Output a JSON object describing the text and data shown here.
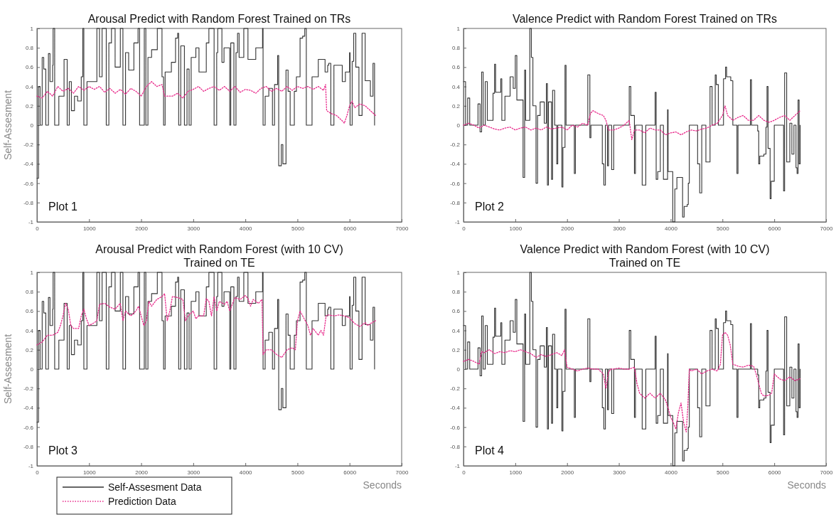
{
  "chart_data": [
    {
      "type": "line",
      "title": "Arousal Predict with Random Forest Trained on TRs",
      "ylabel": "Self-Assesment",
      "xlim": [
        0,
        7000
      ],
      "xticks": [
        0,
        1000,
        2000,
        3000,
        4000,
        5000,
        6000,
        7000
      ],
      "ylim": [
        -1,
        1
      ],
      "yticks": [
        -1,
        -0.8,
        -0.6,
        -0.4,
        -0.2,
        0,
        0.2,
        0.4,
        0.6,
        0.8,
        1
      ],
      "annotations": [
        "Plot 1"
      ],
      "series": [
        {
          "type": "step",
          "color": "#333333",
          "line_style": "solid",
          "x": [
            0,
            30,
            60,
            100,
            130,
            170,
            220,
            250,
            300,
            310,
            340,
            420,
            520,
            580,
            620,
            660,
            720,
            780,
            850,
            880,
            900,
            960,
            1150,
            1200,
            1250,
            1330,
            1380,
            1430,
            1500,
            1600,
            1650,
            1700,
            1760,
            1860,
            1940,
            1970,
            2060,
            2090,
            2130,
            2200,
            2310,
            2400,
            2430,
            2460,
            2580,
            2660,
            2700,
            2720,
            2760,
            2830,
            2880,
            2920,
            2960,
            3050,
            3110,
            3250,
            3300,
            3400,
            3450,
            3470,
            3550,
            3590,
            3700,
            3720,
            3780,
            3820,
            3850,
            3880,
            3970,
            4050,
            4200,
            4330,
            4340,
            4380,
            4450,
            4520,
            4560,
            4620,
            4640,
            4690,
            4720,
            4780,
            4820,
            4860,
            4940,
            4980,
            5050,
            5100,
            5140,
            5170,
            5280,
            5400,
            5530,
            5580,
            5600,
            5640,
            5700,
            5860,
            5920,
            6000,
            6010,
            6050,
            6080,
            6120,
            6180,
            6240,
            6300,
            6400,
            6450,
            6480
          ],
          "values": [
            -0.55,
            0.4,
            0,
            0.7,
            0.58,
            0,
            0.74,
            0.45,
            0.62,
            1,
            0,
            0.3,
            0.68,
            0,
            0.45,
            0.15,
            0.3,
            0.25,
            0.5,
            1,
            0,
            0.45,
            1,
            0.5,
            1,
            0,
            0.85,
            1,
            0.6,
            1,
            0,
            0.75,
            0.57,
            0.85,
            1,
            0,
            1,
            0,
            0.7,
            0.78,
            1,
            0.5,
            0,
            0.55,
            0.65,
            0.9,
            0.95,
            0,
            0.82,
            0,
            0.58,
            0,
            0.7,
            0.8,
            0.55,
            0.85,
            1,
            0,
            0.75,
            1,
            0.65,
            0.8,
            0,
            0.85,
            0,
            0.75,
            0.95,
            0.7,
            1,
            0.68,
            0.8,
            1,
            0,
            0.3,
            0.38,
            0,
            0.42,
            0.72,
            -0.42,
            -0.2,
            -0.4,
            0.57,
            0.35,
            0,
            0.35,
            0.5,
            0.9,
            0.92,
            1,
            0,
            0.5,
            0.68,
            0.55,
            0.62,
            0.64,
            0,
            0.62,
            0.45,
            0.55,
            0.75,
            0,
            0.66,
            0.95,
            0.6,
            0.1,
            0.95,
            0.46,
            0.3,
            0.64,
            0
          ]
        },
        {
          "color": "#e8288a",
          "line_style": "dotted",
          "x": [
            0,
            100,
            200,
            300,
            400,
            500,
            600,
            700,
            800,
            900,
            1000,
            1100,
            1200,
            1300,
            1400,
            1500,
            1600,
            1700,
            1800,
            1900,
            2000,
            2100,
            2200,
            2300,
            2400,
            2450,
            2600,
            2700,
            2800,
            2900,
            3000,
            3100,
            3200,
            3300,
            3400,
            3500,
            3600,
            3700,
            3800,
            3900,
            4000,
            4100,
            4200,
            4300,
            4400,
            4500,
            4600,
            4700,
            4800,
            4900,
            5000,
            5100,
            5200,
            5300,
            5400,
            5500,
            5540,
            5560,
            5650,
            5750,
            5850,
            5900,
            5950,
            6000,
            6050,
            6100,
            6200,
            6300,
            6400,
            6500
          ],
          "values": [
            0.3,
            0.28,
            0.35,
            0.3,
            0.4,
            0.35,
            0.38,
            0.33,
            0.4,
            0.36,
            0.4,
            0.37,
            0.4,
            0.34,
            0.38,
            0.33,
            0.37,
            0.32,
            0.38,
            0.35,
            0.3,
            0.4,
            0.45,
            0.4,
            0.42,
            0.3,
            0.3,
            0.33,
            0.28,
            0.35,
            0.37,
            0.4,
            0.35,
            0.38,
            0.4,
            0.36,
            0.4,
            0.35,
            0.4,
            0.34,
            0.37,
            0.36,
            0.33,
            0.38,
            0.4,
            0.35,
            0.38,
            0.35,
            0.4,
            0.36,
            0.4,
            0.38,
            0.4,
            0.37,
            0.4,
            0.36,
            0.42,
            0.15,
            0.12,
            0.1,
            0.05,
            0.02,
            0.1,
            0.2,
            0.25,
            0.18,
            0.22,
            0.2,
            0.15,
            0.1
          ]
        }
      ]
    },
    {
      "type": "line",
      "title": "Valence Predict with Random Forest Trained on TRs",
      "xlim": [
        0,
        7000
      ],
      "xticks": [
        0,
        1000,
        2000,
        3000,
        4000,
        5000,
        6000,
        7000
      ],
      "ylim": [
        -1,
        1
      ],
      "yticks": [
        -1,
        -0.8,
        -0.6,
        -0.4,
        -0.2,
        0,
        0.2,
        0.4,
        0.6,
        0.8,
        1
      ],
      "annotations": [
        "Plot 2"
      ],
      "series": [
        {
          "type": "step",
          "color": "#333333",
          "line_style": "solid",
          "x": [
            0,
            40,
            80,
            120,
            280,
            320,
            350,
            380,
            420,
            460,
            570,
            600,
            620,
            720,
            740,
            800,
            900,
            960,
            1000,
            1030,
            1150,
            1180,
            1200,
            1280,
            1310,
            1340,
            1400,
            1430,
            1480,
            1560,
            1600,
            1620,
            1640,
            1700,
            1720,
            1760,
            1800,
            1820,
            1900,
            1920,
            1960,
            1980,
            2140,
            2160,
            2400,
            2440,
            2460,
            2680,
            2710,
            2740,
            2780,
            2800,
            2860,
            2900,
            3200,
            3230,
            3300,
            3320,
            3450,
            3520,
            3700,
            3720,
            3750,
            3800,
            3860,
            3940,
            3950,
            4040,
            4080,
            4120,
            4230,
            4260,
            4320,
            4340,
            4360,
            4520,
            4560,
            4600,
            4680,
            4760,
            4800,
            4860,
            4880,
            4920,
            5020,
            5060,
            5080,
            5160,
            5200,
            5280,
            5300,
            5540,
            5560,
            5680,
            5700,
            5720,
            5800,
            5840,
            5860,
            5880,
            5920,
            5940,
            6000,
            6180,
            6200,
            6240,
            6300,
            6340,
            6380,
            6420,
            6440,
            6460,
            6480,
            6500
          ],
          "values": [
            0.45,
            0,
            0.28,
            0,
            0.22,
            -0.07,
            0.55,
            0,
            0.45,
            0.05,
            0.33,
            0.63,
            0.34,
            0.48,
            0.05,
            0.3,
            0.5,
            0.38,
            0.72,
            0.26,
            -0.54,
            0.57,
            0.05,
            1,
            0.7,
            0.2,
            -0.6,
            0.1,
            0.24,
            0.02,
            0.43,
            -0.62,
            0.24,
            -0.56,
            0.36,
            0,
            -0.4,
            0,
            -0.64,
            -0.23,
            0.62,
            0,
            -0.5,
            0,
            0.52,
            -0.13,
            0,
            -0.4,
            -0.62,
            0,
            -0.42,
            0,
            -0.46,
            0,
            0.4,
            0.1,
            -0.5,
            0,
            -0.62,
            0,
            0.34,
            -0.56,
            -0.48,
            0,
            -0.56,
            0.16,
            -0.48,
            -1,
            -0.66,
            -0.54,
            -0.95,
            -0.84,
            -0.82,
            -0.6,
            0,
            -0.4,
            -0.7,
            0,
            -0.38,
            0.4,
            0,
            0.52,
            0.42,
            0,
            0.48,
            0.6,
            0.5,
            0.46,
            0,
            -0.5,
            0,
            0.47,
            0,
            -0.06,
            -0.4,
            -0.32,
            -0.3,
            -0.02,
            0.4,
            -0.24,
            -0.76,
            -0.58,
            0,
            -0.68,
            0.54,
            -0.38,
            0.02,
            -0.3,
            0,
            -0.44,
            -0.5,
            0.26,
            -0.4,
            0
          ]
        },
        {
          "color": "#e8288a",
          "line_style": "dotted",
          "x": [
            0,
            100,
            200,
            300,
            400,
            500,
            600,
            700,
            800,
            900,
            1000,
            1100,
            1200,
            1300,
            1400,
            1500,
            1600,
            1700,
            1800,
            1900,
            2000,
            2100,
            2200,
            2300,
            2400,
            2450,
            2500,
            2600,
            2700,
            2750,
            2800,
            2900,
            3000,
            3100,
            3200,
            3250,
            3300,
            3400,
            3500,
            3600,
            3700,
            3800,
            3900,
            4000,
            4100,
            4200,
            4300,
            4400,
            4500,
            4600,
            4700,
            4800,
            4900,
            5000,
            5050,
            5100,
            5200,
            5300,
            5400,
            5500,
            5600,
            5700,
            5800,
            5900,
            6000,
            6100,
            6200,
            6300,
            6400,
            6500
          ],
          "values": [
            0,
            0.02,
            0,
            -0.03,
            0,
            -0.02,
            -0.04,
            -0.05,
            -0.03,
            -0.02,
            -0.05,
            -0.03,
            -0.02,
            -0.05,
            -0.03,
            -0.05,
            -0.02,
            -0.04,
            -0.03,
            -0.02,
            -0.05,
            0,
            -0.02,
            0.02,
            0,
            0.12,
            0.15,
            0.12,
            0.1,
            0.05,
            -0.05,
            -0.05,
            -0.03,
            0,
            0.05,
            -0.15,
            -0.05,
            -0.05,
            -0.08,
            -0.03,
            -0.05,
            -0.05,
            -0.1,
            -0.08,
            -0.07,
            -0.1,
            -0.07,
            -0.05,
            -0.06,
            -0.04,
            -0.03,
            0,
            0.02,
            0.1,
            0.2,
            0.1,
            0.05,
            0.08,
            0.1,
            0.05,
            0.05,
            0.1,
            0.05,
            0.03,
            0.05,
            0.08,
            0.1,
            0.05,
            0.1,
            0.15
          ]
        }
      ]
    },
    {
      "type": "line",
      "title": "Arousal Predict with Random Forest (with 10 CV)\nTrained on TE",
      "xlabel": "Seconds",
      "ylabel": "Self-Assesment",
      "xlim": [
        0,
        7000
      ],
      "xticks": [
        0,
        1000,
        2000,
        3000,
        4000,
        5000,
        6000,
        7000
      ],
      "ylim": [
        -1,
        1
      ],
      "yticks": [
        -1,
        -0.8,
        -0.6,
        -0.4,
        -0.2,
        0,
        0.2,
        0.4,
        0.6,
        0.8,
        1
      ],
      "annotations": [
        "Plot 3"
      ],
      "legend": "bottom left",
      "series": [
        {
          "name": "Self-Assesment Data",
          "type": "step",
          "color": "#333333",
          "line_style": "solid",
          "x": [
            0,
            30,
            60,
            100,
            130,
            170,
            220,
            250,
            300,
            310,
            340,
            420,
            520,
            580,
            620,
            660,
            720,
            780,
            850,
            880,
            900,
            960,
            1150,
            1200,
            1250,
            1330,
            1380,
            1430,
            1500,
            1600,
            1650,
            1700,
            1760,
            1860,
            1940,
            1970,
            2060,
            2090,
            2130,
            2200,
            2310,
            2400,
            2430,
            2460,
            2580,
            2660,
            2700,
            2720,
            2760,
            2830,
            2880,
            2920,
            2960,
            3050,
            3110,
            3250,
            3300,
            3400,
            3450,
            3470,
            3550,
            3590,
            3700,
            3720,
            3780,
            3820,
            3850,
            3880,
            3970,
            4050,
            4200,
            4330,
            4340,
            4380,
            4450,
            4520,
            4560,
            4620,
            4640,
            4690,
            4720,
            4780,
            4820,
            4860,
            4940,
            4980,
            5050,
            5100,
            5140,
            5170,
            5280,
            5400,
            5530,
            5580,
            5600,
            5640,
            5700,
            5860,
            5920,
            6000,
            6010,
            6050,
            6080,
            6120,
            6180,
            6240,
            6300,
            6400,
            6450,
            6480
          ],
          "values": [
            -0.55,
            0.4,
            0,
            0.7,
            0.58,
            0,
            0.74,
            0.45,
            0.62,
            1,
            0,
            0.3,
            0.68,
            0,
            0.45,
            0.15,
            0.3,
            0.25,
            0.5,
            1,
            0,
            0.45,
            1,
            0.5,
            1,
            0,
            0.85,
            1,
            0.6,
            1,
            0,
            0.75,
            0.57,
            0.85,
            1,
            0,
            1,
            0,
            0.7,
            0.78,
            1,
            0.5,
            0,
            0.55,
            0.65,
            0.9,
            0.95,
            0,
            0.82,
            0,
            0.58,
            0,
            0.7,
            0.8,
            0.55,
            0.85,
            1,
            0,
            0.75,
            1,
            0.65,
            0.8,
            0,
            0.85,
            0,
            0.75,
            0.95,
            0.7,
            1,
            0.68,
            0.8,
            1,
            0,
            0.3,
            0.38,
            0,
            0.42,
            0.72,
            -0.42,
            -0.2,
            -0.4,
            0.57,
            0.35,
            0,
            0.35,
            0.5,
            0.9,
            0.92,
            1,
            0,
            0.5,
            0.68,
            0.55,
            0.62,
            0.64,
            0,
            0.62,
            0.45,
            0.55,
            0.75,
            0,
            0.66,
            0.95,
            0.6,
            0.1,
            0.95,
            0.46,
            0.3,
            0.64,
            0
          ]
        },
        {
          "name": "Prediction Data",
          "color": "#e8288a",
          "line_style": "dotted",
          "x": [
            0,
            100,
            200,
            300,
            400,
            450,
            500,
            550,
            600,
            650,
            700,
            800,
            850,
            900,
            950,
            1000,
            1100,
            1150,
            1200,
            1300,
            1400,
            1500,
            1600,
            1650,
            1700,
            1800,
            1900,
            1950,
            2000,
            2050,
            2100,
            2150,
            2200,
            2300,
            2400,
            2450,
            2500,
            2550,
            2600,
            2700,
            2800,
            2850,
            2900,
            3000,
            3050,
            3100,
            3200,
            3250,
            3300,
            3350,
            3400,
            3450,
            3500,
            3600,
            3650,
            3700,
            3800,
            3900,
            4000,
            4050,
            4100,
            4150,
            4250,
            4320,
            4340,
            4400,
            4500,
            4600,
            4700,
            4800,
            4900,
            4960,
            5000,
            5050,
            5100,
            5200,
            5250,
            5300,
            5400,
            5450,
            5500,
            5550,
            5600,
            5700,
            5800,
            5900,
            6000,
            6050,
            6100,
            6200,
            6300,
            6350,
            6400,
            6500
          ],
          "values": [
            0.25,
            0.28,
            0.35,
            0.35,
            0.38,
            0.45,
            0.55,
            0.68,
            0.62,
            0.45,
            0.42,
            0.42,
            0.55,
            0.62,
            0.52,
            0.45,
            0.48,
            0.5,
            0.67,
            0.68,
            0.64,
            0.62,
            0.68,
            0.5,
            0.6,
            0.55,
            0.6,
            0.65,
            0.55,
            0.45,
            0.5,
            0.7,
            0.65,
            0.72,
            0.75,
            0.78,
            0.5,
            0.6,
            0.75,
            0.74,
            0.72,
            0.5,
            0.55,
            0.6,
            0.52,
            0.55,
            0.55,
            0.73,
            0.7,
            0.55,
            0.75,
            0.6,
            0.7,
            0.67,
            0.7,
            0.6,
            0.74,
            0.72,
            0.76,
            0.73,
            0.65,
            0.72,
            0.68,
            0.72,
            0.15,
            0.2,
            0.2,
            0.15,
            0.12,
            0.2,
            0.22,
            0.2,
            0.5,
            0.6,
            0.55,
            0.45,
            0.35,
            0.42,
            0.35,
            0.4,
            0.35,
            0.55,
            0.56,
            0.55,
            0.56,
            0.55,
            0.53,
            0.5,
            0.47,
            0.44,
            0.48,
            0.45,
            0.47,
            0.5
          ]
        }
      ]
    },
    {
      "type": "line",
      "title": "Valence Predict with Random Forest (with 10 CV)\nTrained on TE",
      "xlabel": "Seconds",
      "xlim": [
        0,
        7000
      ],
      "xticks": [
        0,
        1000,
        2000,
        3000,
        4000,
        5000,
        6000,
        7000
      ],
      "ylim": [
        -1,
        1
      ],
      "yticks": [
        -1,
        -0.8,
        -0.6,
        -0.4,
        -0.2,
        0,
        0.2,
        0.4,
        0.6,
        0.8,
        1
      ],
      "annotations": [
        "Plot 4"
      ],
      "series": [
        {
          "type": "step",
          "color": "#333333",
          "line_style": "solid",
          "x": [
            0,
            40,
            80,
            120,
            280,
            320,
            350,
            380,
            420,
            460,
            570,
            600,
            620,
            720,
            740,
            800,
            900,
            960,
            1000,
            1030,
            1150,
            1180,
            1200,
            1280,
            1310,
            1340,
            1400,
            1430,
            1480,
            1560,
            1600,
            1620,
            1640,
            1700,
            1720,
            1760,
            1800,
            1820,
            1900,
            1920,
            1960,
            1980,
            2140,
            2160,
            2400,
            2440,
            2460,
            2680,
            2710,
            2740,
            2780,
            2800,
            2860,
            2900,
            3200,
            3230,
            3300,
            3320,
            3450,
            3520,
            3700,
            3720,
            3750,
            3800,
            3860,
            3940,
            3950,
            4040,
            4080,
            4120,
            4230,
            4260,
            4320,
            4340,
            4360,
            4520,
            4560,
            4600,
            4680,
            4760,
            4800,
            4860,
            4880,
            4920,
            5020,
            5060,
            5080,
            5160,
            5200,
            5280,
            5300,
            5540,
            5560,
            5680,
            5700,
            5720,
            5800,
            5840,
            5860,
            5880,
            5920,
            5940,
            6000,
            6180,
            6200,
            6240,
            6300,
            6340,
            6380,
            6420,
            6440,
            6460,
            6480,
            6500
          ],
          "values": [
            0.45,
            0,
            0.28,
            0,
            0.22,
            -0.07,
            0.55,
            0,
            0.45,
            0.05,
            0.33,
            0.63,
            0.34,
            0.48,
            0.05,
            0.3,
            0.5,
            0.38,
            0.72,
            0.26,
            -0.54,
            0.57,
            0.05,
            1,
            0.7,
            0.2,
            -0.6,
            0.1,
            0.24,
            0.02,
            0.43,
            -0.62,
            0.24,
            -0.56,
            0.36,
            0,
            -0.4,
            0,
            -0.64,
            -0.23,
            0.62,
            0,
            -0.5,
            0,
            0.52,
            -0.13,
            0,
            -0.4,
            -0.62,
            0,
            -0.42,
            0,
            -0.46,
            0,
            0.4,
            0.1,
            -0.5,
            0,
            -0.62,
            0,
            0.34,
            -0.56,
            -0.48,
            0,
            -0.56,
            0.16,
            -0.48,
            -1,
            -0.66,
            -0.54,
            -0.95,
            -0.84,
            -0.82,
            -0.6,
            0,
            -0.4,
            -0.7,
            0,
            -0.38,
            0.4,
            0,
            0.52,
            0.42,
            0,
            0.48,
            0.6,
            0.5,
            0.46,
            0,
            -0.5,
            0,
            0.47,
            0,
            -0.06,
            -0.4,
            -0.32,
            -0.3,
            -0.02,
            0.4,
            -0.24,
            -0.76,
            -0.58,
            0,
            -0.68,
            0.54,
            -0.38,
            0.02,
            -0.3,
            0,
            -0.44,
            -0.5,
            0.26,
            -0.4,
            0
          ]
        },
        {
          "color": "#e8288a",
          "line_style": "dotted",
          "x": [
            0,
            100,
            200,
            300,
            350,
            400,
            500,
            600,
            700,
            800,
            900,
            1000,
            1100,
            1200,
            1300,
            1400,
            1500,
            1600,
            1700,
            1800,
            1900,
            1950,
            2000,
            2100,
            2200,
            2300,
            2400,
            2500,
            2600,
            2700,
            2750,
            2800,
            2850,
            2900,
            3000,
            3100,
            3200,
            3300,
            3350,
            3400,
            3500,
            3600,
            3700,
            3800,
            3900,
            3950,
            4000,
            4050,
            4100,
            4150,
            4200,
            4250,
            4300,
            4330,
            4360,
            4400,
            4500,
            4600,
            4700,
            4800,
            4900,
            4960,
            5000,
            5050,
            5100,
            5150,
            5200,
            5300,
            5400,
            5500,
            5600,
            5650,
            5700,
            5750,
            5800,
            5900,
            5950,
            6000,
            6100,
            6200,
            6300,
            6400,
            6500
          ],
          "values": [
            0.08,
            0.1,
            0.08,
            0.05,
            0.18,
            0.17,
            0.2,
            0.16,
            0.18,
            0.17,
            0.19,
            0.18,
            0.2,
            0.18,
            0.16,
            0.12,
            0.15,
            0.13,
            0.15,
            0.17,
            0.14,
            0.2,
            0.02,
            0,
            -0.02,
            0,
            0.01,
            0,
            0,
            -0.05,
            -0.2,
            -0.03,
            0,
            0,
            0.01,
            0,
            0,
            0.02,
            -0.15,
            -0.25,
            -0.3,
            -0.25,
            -0.3,
            -0.25,
            -0.32,
            -0.4,
            -0.5,
            -0.55,
            -0.62,
            -0.45,
            -0.35,
            -0.55,
            -0.65,
            -0.4,
            0,
            -0.02,
            0,
            -0.05,
            -0.02,
            0,
            -0.02,
            0.05,
            0.35,
            0.38,
            0.35,
            0.25,
            0.05,
            0.03,
            0.02,
            0.04,
            0.03,
            -0.05,
            -0.15,
            -0.25,
            -0.28,
            -0.27,
            -0.25,
            -0.05,
            -0.1,
            -0.12,
            -0.08,
            -0.12,
            -0.1
          ]
        }
      ]
    }
  ]
}
